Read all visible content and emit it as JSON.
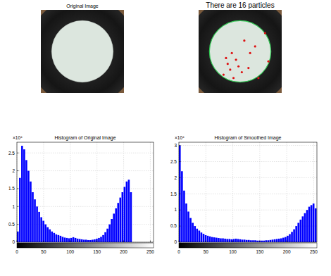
{
  "images": [
    {
      "title": "Original Image"
    },
    {
      "title": "There are 16 particles",
      "particles": [
        {
          "x": 55,
          "y": 37
        },
        {
          "x": 68,
          "y": 44
        },
        {
          "x": 80,
          "y": 28
        },
        {
          "x": 84,
          "y": 62
        },
        {
          "x": 40,
          "y": 52
        },
        {
          "x": 45,
          "y": 60
        },
        {
          "x": 35,
          "y": 65
        },
        {
          "x": 38,
          "y": 72
        },
        {
          "x": 48,
          "y": 68
        },
        {
          "x": 52,
          "y": 75
        },
        {
          "x": 30,
          "y": 78
        },
        {
          "x": 42,
          "y": 82
        },
        {
          "x": 60,
          "y": 70
        },
        {
          "x": 33,
          "y": 58
        },
        {
          "x": 72,
          "y": 82
        },
        {
          "x": 62,
          "y": 52
        }
      ]
    }
  ],
  "chart_data": [
    {
      "type": "histogram",
      "title": "Histogram of Original Image",
      "y_scale_label": "×10⁴",
      "color": "#0000ff",
      "grid": true,
      "bins": [
        0,
        4,
        8,
        12,
        16,
        20,
        24,
        28,
        32,
        36,
        40,
        44,
        48,
        52,
        56,
        60,
        64,
        68,
        72,
        76,
        80,
        84,
        88,
        92,
        96,
        100,
        104,
        108,
        112,
        116,
        120,
        124,
        128,
        132,
        136,
        140,
        144,
        148,
        152,
        156,
        160,
        164,
        168,
        172,
        176,
        180,
        184,
        188,
        192,
        196,
        200,
        204,
        208,
        212,
        216,
        220,
        224,
        228,
        232,
        236,
        240,
        244,
        248,
        252,
        256
      ],
      "values": [
        0.3,
        1.8,
        2.7,
        2.6,
        2.3,
        2.0,
        1.7,
        1.4,
        1.2,
        1.0,
        0.85,
        0.7,
        0.6,
        0.5,
        0.42,
        0.36,
        0.3,
        0.26,
        0.22,
        0.2,
        0.18,
        0.15,
        0.13,
        0.12,
        0.11,
        0.12,
        0.14,
        0.12,
        0.1,
        0.09,
        0.08,
        0.07,
        0.07,
        0.06,
        0.06,
        0.07,
        0.08,
        0.1,
        0.12,
        0.15,
        0.2,
        0.28,
        0.38,
        0.5,
        0.65,
        0.8,
        0.95,
        1.1,
        1.25,
        1.4,
        1.55,
        1.7,
        1.75,
        1.4,
        0,
        0,
        0,
        0,
        0,
        0,
        0,
        0,
        0,
        0
      ],
      "xlim": [
        0,
        256
      ],
      "xticks": [
        0,
        50,
        100,
        150,
        200,
        250
      ],
      "ylim": [
        0,
        2.8
      ],
      "yticks": [
        0,
        0.5,
        1,
        1.5,
        2,
        2.5
      ]
    },
    {
      "type": "histogram",
      "title": "Histogram of Smoothed Image",
      "y_scale_label": "×10⁴",
      "color": "#0000ff",
      "grid": true,
      "bins": [
        0,
        4,
        8,
        12,
        16,
        20,
        24,
        28,
        32,
        36,
        40,
        44,
        48,
        52,
        56,
        60,
        64,
        68,
        72,
        76,
        80,
        84,
        88,
        92,
        96,
        100,
        104,
        108,
        112,
        116,
        120,
        124,
        128,
        132,
        136,
        140,
        144,
        148,
        152,
        156,
        160,
        164,
        168,
        172,
        176,
        180,
        184,
        188,
        192,
        196,
        200,
        204,
        208,
        212,
        216,
        220,
        224,
        228,
        232,
        236,
        240,
        244,
        248,
        252,
        256
      ],
      "values": [
        3.0,
        2.2,
        1.6,
        1.2,
        0.95,
        0.75,
        0.6,
        0.5,
        0.42,
        0.36,
        0.3,
        0.26,
        0.22,
        0.2,
        0.18,
        0.16,
        0.15,
        0.14,
        0.13,
        0.12,
        0.12,
        0.11,
        0.1,
        0.1,
        0.09,
        0.1,
        0.11,
        0.1,
        0.09,
        0.08,
        0.08,
        0.07,
        0.07,
        0.06,
        0.06,
        0.06,
        0.05,
        0.05,
        0.05,
        0.05,
        0.06,
        0.06,
        0.07,
        0.08,
        0.09,
        0.1,
        0.11,
        0.12,
        0.14,
        0.16,
        0.2,
        0.25,
        0.32,
        0.4,
        0.5,
        0.6,
        0.7,
        0.8,
        0.9,
        1.0,
        1.1,
        1.15,
        1.2,
        1.05
      ],
      "xlim": [
        0,
        256
      ],
      "xticks": [
        0,
        50,
        100,
        150,
        200,
        250
      ],
      "ylim": [
        0,
        3.1
      ],
      "yticks": [
        0,
        0.5,
        1,
        1.5,
        2,
        2.5,
        3
      ]
    }
  ]
}
